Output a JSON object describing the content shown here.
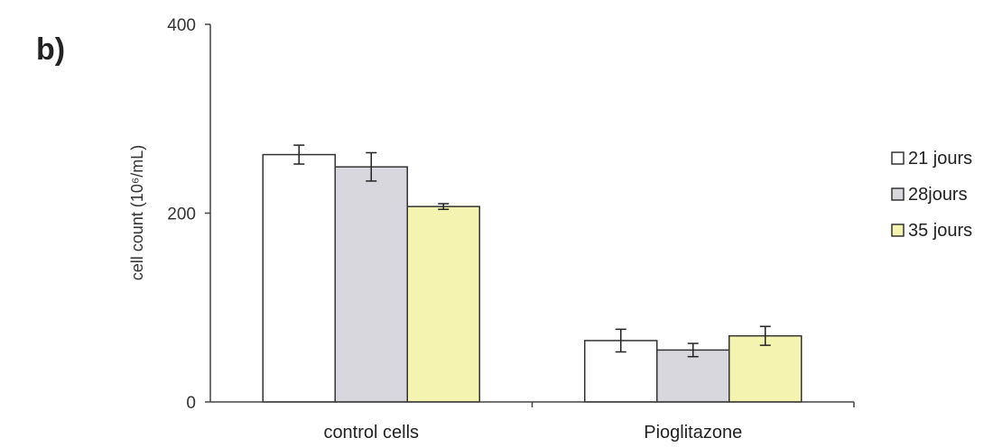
{
  "panel_label": "b)",
  "chart_data": {
    "type": "bar",
    "categories": [
      "control cells",
      "Pioglitazone"
    ],
    "series": [
      {
        "name": "21 jours",
        "values": [
          262,
          65
        ],
        "errors": [
          10,
          12
        ],
        "color": "#ffffff"
      },
      {
        "name": "28jours",
        "values": [
          249,
          55
        ],
        "errors": [
          15,
          7
        ],
        "color": "#d7d7dd"
      },
      {
        "name": "35 jours",
        "values": [
          207,
          70
        ],
        "errors": [
          3,
          10
        ],
        "color": "#f4f4b0"
      }
    ],
    "ylabel": "cell count (10⁶/mL)",
    "ylim": [
      0,
      400
    ],
    "yticks": [
      0,
      200,
      400
    ],
    "grid": false,
    "legend_position": "right"
  }
}
